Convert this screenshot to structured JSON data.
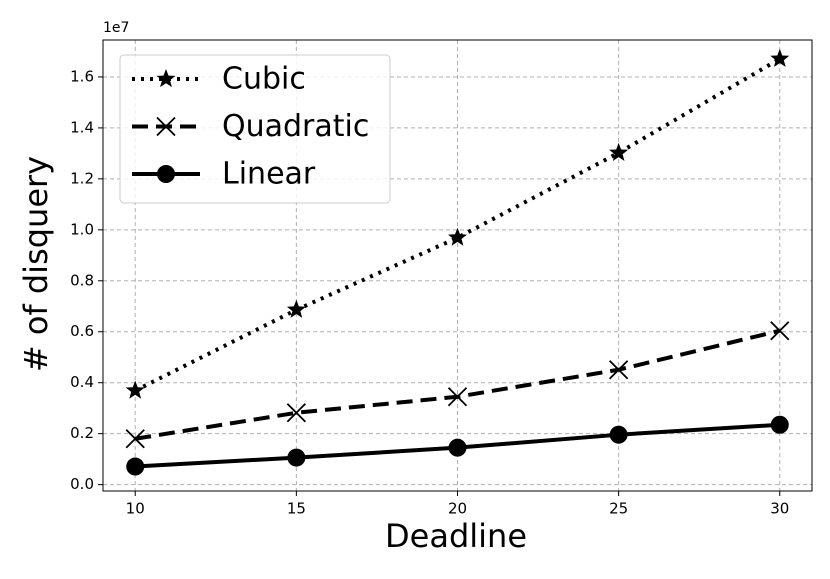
{
  "chart_data": {
    "type": "line",
    "xlabel": "Deadline",
    "ylabel": "# of disquery",
    "y_offset_label": "1e7",
    "x": [
      10,
      15,
      20,
      25,
      30
    ],
    "series": [
      {
        "name": "Cubic",
        "color": "#000000",
        "style": "dotted",
        "marker": "star",
        "values": [
          0.369,
          0.686,
          0.969,
          1.302,
          1.671
        ]
      },
      {
        "name": "Quadratic",
        "color": "#000000",
        "style": "dashed",
        "marker": "x",
        "values": [
          0.18,
          0.282,
          0.345,
          0.451,
          0.604
        ]
      },
      {
        "name": "Linear",
        "color": "#000000",
        "style": "solid",
        "marker": "circle",
        "values": [
          0.071,
          0.106,
          0.145,
          0.196,
          0.235
        ]
      }
    ],
    "xlim": [
      9,
      31
    ],
    "xticks": [
      10,
      15,
      20,
      25,
      30
    ],
    "ylim": [
      -0.025,
      1.745
    ],
    "yticks": [
      {
        "value": 0,
        "label": "0.0"
      },
      0.2,
      0.4,
      0.6,
      0.8,
      {
        "value": 1,
        "label": "1.0"
      },
      1.2,
      1.4,
      1.6
    ],
    "grid": true,
    "legend": "upper left"
  }
}
